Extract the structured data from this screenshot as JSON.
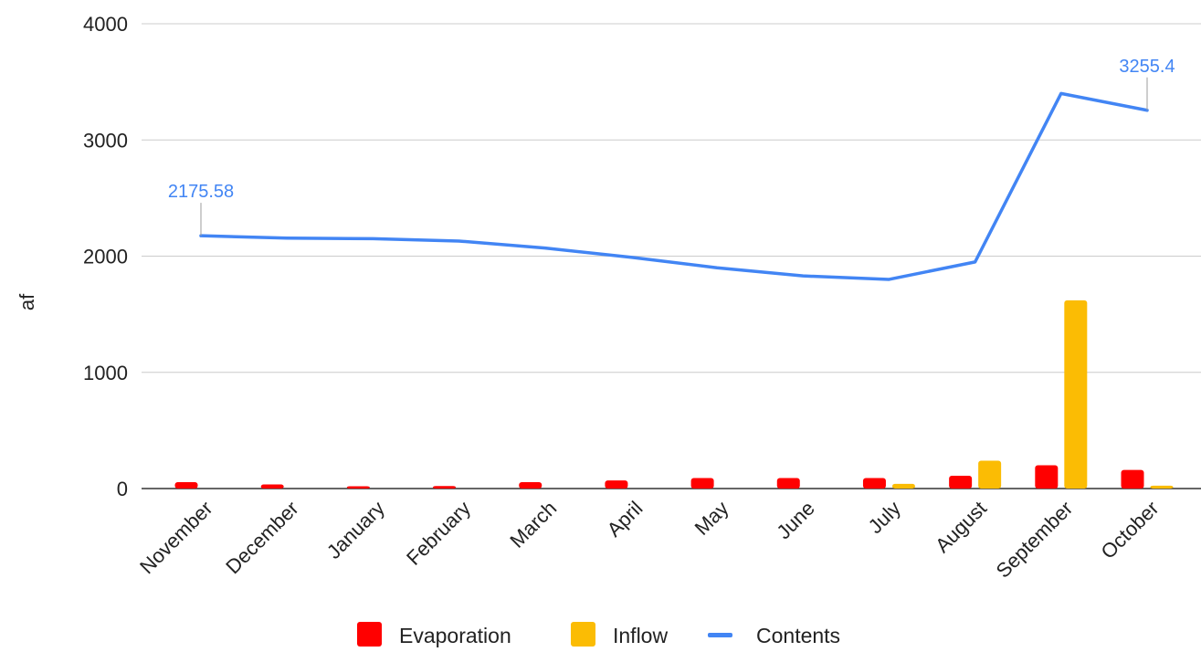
{
  "chart_data": {
    "type": "bar",
    "title": "",
    "xlabel": "",
    "ylabel": "af",
    "ylim": [
      0,
      4000
    ],
    "yticks": [
      0,
      1000,
      2000,
      3000,
      4000
    ],
    "grid": true,
    "legend_position": "bottom",
    "categories": [
      "November",
      "December",
      "January",
      "February",
      "March",
      "April",
      "May",
      "June",
      "July",
      "August",
      "September",
      "October"
    ],
    "series": [
      {
        "name": "Evaporation",
        "kind": "bar",
        "color": "#ff0000",
        "values": [
          55,
          35,
          20,
          22,
          55,
          70,
          90,
          90,
          90,
          110,
          200,
          160
        ]
      },
      {
        "name": "Inflow",
        "kind": "bar",
        "color": "#fbbc04",
        "values": [
          0,
          0,
          0,
          0,
          0,
          0,
          0,
          0,
          40,
          240,
          1620,
          25
        ]
      },
      {
        "name": "Contents",
        "kind": "line",
        "color": "#4285f4",
        "values": [
          2175.58,
          2155,
          2150,
          2130,
          2070,
          1990,
          1900,
          1830,
          1800,
          1950,
          3400,
          3255.4
        ]
      }
    ],
    "annotations": [
      {
        "series": "Contents",
        "category": "November",
        "text": "2175.58"
      },
      {
        "series": "Contents",
        "category": "October",
        "text": "3255.4"
      }
    ]
  }
}
